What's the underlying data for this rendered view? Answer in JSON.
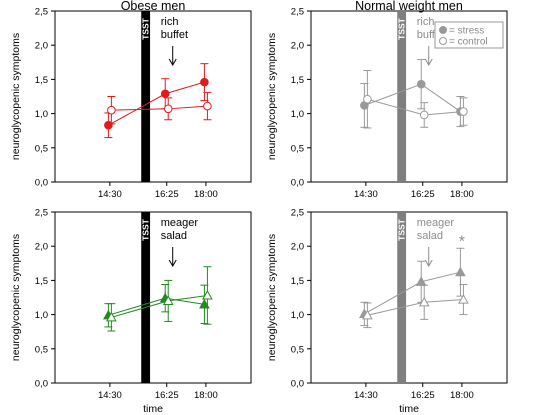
{
  "legend": {
    "stress_label": "= stress",
    "control_label": "= control",
    "placement": "top-right (top-right panel)"
  },
  "chart_data": [
    {
      "type": "line",
      "title": "Obese men",
      "xlabel": "",
      "ylabel": "neuroglycopenic symptoms",
      "categories": [
        "14:30",
        "16:25",
        "18:00"
      ],
      "ylim": [
        0,
        2.5
      ],
      "yticks": [
        "0,0",
        "0,5",
        "1,0",
        "1,5",
        "2,0",
        "2,5"
      ],
      "color": "#e31a1c",
      "tsst_label": "TSST",
      "annotation": "rich\nbuffet",
      "marker": "circle",
      "series": [
        {
          "name": "stress",
          "values": [
            0.83,
            1.29,
            1.46
          ],
          "err": [
            0.18,
            0.22,
            0.27
          ]
        },
        {
          "name": "control",
          "values": [
            1.05,
            1.07,
            1.11
          ],
          "err": [
            0.2,
            0.16,
            0.2
          ]
        }
      ]
    },
    {
      "type": "line",
      "title": "Normal weight men",
      "xlabel": "",
      "ylabel": "neuroglycopenic symptoms",
      "categories": [
        "14:30",
        "16:25",
        "18:00"
      ],
      "ylim": [
        0,
        2.5
      ],
      "yticks": [
        "0,0",
        "0,5",
        "1,0",
        "1,5",
        "2,0",
        "2,5"
      ],
      "color": "#999999",
      "tsst_label": "TSST",
      "annotation": "rich\nbuffet",
      "marker": "circle",
      "series": [
        {
          "name": "stress",
          "values": [
            1.12,
            1.43,
            1.03
          ],
          "err": [
            0.32,
            0.36,
            0.22
          ]
        },
        {
          "name": "control",
          "values": [
            1.21,
            0.98,
            1.03
          ],
          "err": [
            0.42,
            0.18,
            0.2
          ]
        }
      ]
    },
    {
      "type": "line",
      "title": "",
      "xlabel": "time",
      "ylabel": "neuroglycopenic symptoms",
      "categories": [
        "14:30",
        "16:25",
        "18:00"
      ],
      "ylim": [
        0,
        2.5
      ],
      "yticks": [
        "0,0",
        "0,5",
        "1,0",
        "1,5",
        "2,0",
        "2,5"
      ],
      "color": "#228b22",
      "tsst_label": "TSST",
      "annotation": "meager\nsalad",
      "marker": "triangle",
      "series": [
        {
          "name": "stress",
          "values": [
            0.99,
            1.24,
            1.15
          ],
          "err": [
            0.17,
            0.2,
            0.28
          ]
        },
        {
          "name": "control",
          "values": [
            0.96,
            1.2,
            1.28
          ],
          "err": [
            0.2,
            0.3,
            0.42
          ]
        }
      ]
    },
    {
      "type": "line",
      "title": "",
      "xlabel": "time",
      "ylabel": "neuroglycopenic symptoms",
      "categories": [
        "14:30",
        "16:25",
        "18:00"
      ],
      "ylim": [
        0,
        2.5
      ],
      "yticks": [
        "0,0",
        "0,5",
        "1,0",
        "1,5",
        "2,0",
        "2,5"
      ],
      "color": "#999999",
      "tsst_label": "TSST",
      "annotation": "meager\nsalad",
      "marker": "triangle",
      "significance": "*",
      "series": [
        {
          "name": "stress",
          "values": [
            1.01,
            1.48,
            1.62
          ],
          "err": [
            0.17,
            0.3,
            0.35
          ]
        },
        {
          "name": "control",
          "values": [
            0.99,
            1.18,
            1.22
          ],
          "err": [
            0.18,
            0.25,
            0.22
          ]
        }
      ]
    }
  ]
}
